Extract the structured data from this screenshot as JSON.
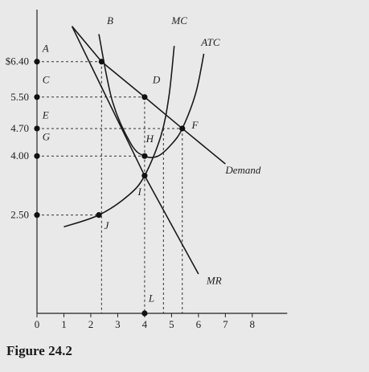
{
  "caption": "Figure 24.2",
  "chart_data": {
    "type": "line",
    "xlim": [
      0,
      9.5
    ],
    "ylim": [
      0,
      7.6
    ],
    "x_ticks": [
      {
        "value": 0,
        "label": "0"
      },
      {
        "value": 1,
        "label": "1"
      },
      {
        "value": 2,
        "label": "2"
      },
      {
        "value": 3,
        "label": "3"
      },
      {
        "value": 4,
        "label": "4"
      },
      {
        "value": 5,
        "label": "5"
      },
      {
        "value": 6,
        "label": "6"
      },
      {
        "value": 7,
        "label": "7"
      },
      {
        "value": 8,
        "label": "8"
      }
    ],
    "y_ticks": [
      {
        "value": 6.4,
        "label": "$6.40"
      },
      {
        "value": 5.5,
        "label": "5.50"
      },
      {
        "value": 4.7,
        "label": "4.70"
      },
      {
        "value": 4.0,
        "label": "4.00"
      },
      {
        "value": 2.5,
        "label": "2.50"
      }
    ],
    "series": [
      {
        "name": "Demand",
        "points": [
          [
            1.3,
            7.3
          ],
          [
            2.4,
            6.4
          ],
          [
            4.0,
            5.5
          ],
          [
            5.4,
            4.7
          ],
          [
            7.0,
            3.8
          ]
        ],
        "smooth": false
      },
      {
        "name": "MR",
        "points": [
          [
            1.3,
            7.3
          ],
          [
            4.0,
            3.5
          ],
          [
            6.0,
            1.0
          ]
        ],
        "smooth": false
      },
      {
        "name": "MC",
        "points": [
          [
            1.0,
            2.2
          ],
          [
            2.3,
            2.5
          ],
          [
            3.4,
            3.0
          ],
          [
            4.0,
            3.5
          ],
          [
            4.6,
            4.5
          ],
          [
            4.9,
            5.5
          ],
          [
            5.1,
            6.8
          ]
        ],
        "smooth": true
      },
      {
        "name": "ATC",
        "points": [
          [
            2.3,
            7.1
          ],
          [
            2.8,
            5.4
          ],
          [
            3.5,
            4.3
          ],
          [
            4.0,
            4.0
          ],
          [
            4.5,
            4.0
          ],
          [
            5.0,
            4.3
          ],
          [
            5.4,
            4.7
          ],
          [
            5.9,
            5.6
          ],
          [
            6.2,
            6.6
          ]
        ],
        "smooth": true
      }
    ],
    "curve_labels": [
      {
        "text": "Demand",
        "x": 7.0,
        "y": 3.55
      },
      {
        "text": "MR",
        "x": 6.3,
        "y": 0.75
      },
      {
        "text": "MC",
        "x": 5.0,
        "y": 7.35
      },
      {
        "text": "ATC",
        "x": 6.1,
        "y": 6.8
      }
    ],
    "points": [
      {
        "label": "A",
        "x": 0,
        "y": 6.4,
        "dot": true,
        "lx": 0.2,
        "ly": 6.65
      },
      {
        "label": "B",
        "x": 2.4,
        "y": 6.4,
        "dot": true,
        "lx": 2.6,
        "ly": 7.35
      },
      {
        "label": "C",
        "x": 0,
        "y": 5.5,
        "dot": true,
        "lx": 0.2,
        "ly": 5.85
      },
      {
        "label": "D",
        "x": 4.0,
        "y": 5.5,
        "dot": true,
        "lx": 4.3,
        "ly": 5.85
      },
      {
        "label": "E",
        "x": 0,
        "y": 4.7,
        "dot": true,
        "lx": 0.2,
        "ly": 4.95
      },
      {
        "label": "F",
        "x": 5.4,
        "y": 4.7,
        "dot": true,
        "lx": 5.75,
        "ly": 4.7
      },
      {
        "label": "G",
        "x": 0,
        "y": 4.0,
        "dot": true,
        "lx": 0.2,
        "ly": 4.4
      },
      {
        "label": "H",
        "x": 4.0,
        "y": 4.0,
        "dot": true,
        "lx": 4.05,
        "ly": 4.35
      },
      {
        "label": "I",
        "x": 4.0,
        "y": 3.5,
        "dot": true,
        "lx": 3.75,
        "ly": 3.0
      },
      {
        "label": "J",
        "x": 2.3,
        "y": 2.5,
        "dot": true,
        "lx": 2.5,
        "ly": 2.15
      },
      {
        "label": "L",
        "x": 4.0,
        "y": 0,
        "dot": true,
        "lx": 4.15,
        "ly": 0.3
      },
      {
        "label": "",
        "x": 0,
        "y": 2.5,
        "dot": true,
        "lx": 0,
        "ly": 0
      }
    ],
    "guides": [
      {
        "x1": 0,
        "y1": 6.4,
        "x2": 2.4,
        "y2": 6.4
      },
      {
        "x1": 2.4,
        "y1": 6.4,
        "x2": 2.4,
        "y2": 0
      },
      {
        "x1": 0,
        "y1": 5.5,
        "x2": 4.0,
        "y2": 5.5
      },
      {
        "x1": 4.0,
        "y1": 5.5,
        "x2": 4.0,
        "y2": 0
      },
      {
        "x1": 0,
        "y1": 4.7,
        "x2": 5.4,
        "y2": 4.7
      },
      {
        "x1": 5.4,
        "y1": 4.7,
        "x2": 5.4,
        "y2": 0
      },
      {
        "x1": 0,
        "y1": 4.0,
        "x2": 4.0,
        "y2": 4.0
      },
      {
        "x1": 4.7,
        "y1": 4.7,
        "x2": 4.7,
        "y2": 0
      },
      {
        "x1": 0,
        "y1": 2.5,
        "x2": 2.3,
        "y2": 2.5
      }
    ]
  }
}
